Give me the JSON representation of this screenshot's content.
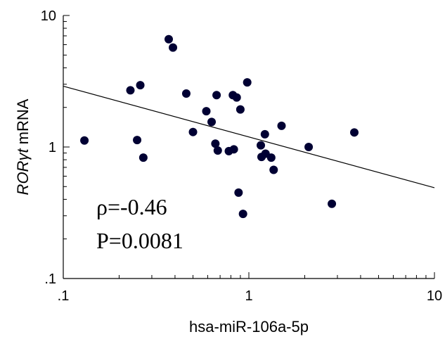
{
  "chart_data": {
    "type": "scatter",
    "xlabel": "hsa-miR-106a-5p",
    "ylabel_gene": "RORγt",
    "ylabel_suffix": " mRNA",
    "x_scale": "log",
    "y_scale": "log",
    "xlim": [
      0.1,
      10
    ],
    "ylim": [
      0.1,
      10
    ],
    "x_ticks": [
      ".1",
      "1",
      "10"
    ],
    "y_ticks": [
      "10",
      "1",
      ".1"
    ],
    "x_tick_values": [
      0.1,
      1,
      10
    ],
    "y_tick_values": [
      10,
      1,
      0.1
    ],
    "grid": false,
    "annotations": {
      "rho": "ρ=-0.46",
      "p": "P=0.0081"
    },
    "regression_line": {
      "x": [
        0.1,
        10
      ],
      "y": [
        2.9,
        0.49
      ]
    },
    "points": [
      {
        "x": 0.13,
        "y": 1.12
      },
      {
        "x": 0.23,
        "y": 2.7
      },
      {
        "x": 0.25,
        "y": 1.13
      },
      {
        "x": 0.26,
        "y": 2.95
      },
      {
        "x": 0.27,
        "y": 0.83
      },
      {
        "x": 0.37,
        "y": 6.6
      },
      {
        "x": 0.39,
        "y": 5.7
      },
      {
        "x": 0.46,
        "y": 2.55
      },
      {
        "x": 0.5,
        "y": 1.3
      },
      {
        "x": 0.59,
        "y": 1.87
      },
      {
        "x": 0.63,
        "y": 1.55
      },
      {
        "x": 0.66,
        "y": 1.06
      },
      {
        "x": 0.67,
        "y": 2.48
      },
      {
        "x": 0.68,
        "y": 0.94
      },
      {
        "x": 0.78,
        "y": 0.93
      },
      {
        "x": 0.82,
        "y": 2.48
      },
      {
        "x": 0.83,
        "y": 0.96
      },
      {
        "x": 0.86,
        "y": 2.38
      },
      {
        "x": 0.88,
        "y": 0.45
      },
      {
        "x": 0.9,
        "y": 1.93
      },
      {
        "x": 0.93,
        "y": 0.31
      },
      {
        "x": 0.98,
        "y": 3.1
      },
      {
        "x": 1.16,
        "y": 1.03
      },
      {
        "x": 1.17,
        "y": 0.84
      },
      {
        "x": 1.22,
        "y": 1.25
      },
      {
        "x": 1.23,
        "y": 0.89
      },
      {
        "x": 1.32,
        "y": 0.83
      },
      {
        "x": 1.36,
        "y": 0.67
      },
      {
        "x": 1.5,
        "y": 1.45
      },
      {
        "x": 2.1,
        "y": 1.0
      },
      {
        "x": 2.8,
        "y": 0.37
      },
      {
        "x": 3.7,
        "y": 1.29
      }
    ],
    "marker_color": "#000033",
    "axis_color": "#000000"
  }
}
